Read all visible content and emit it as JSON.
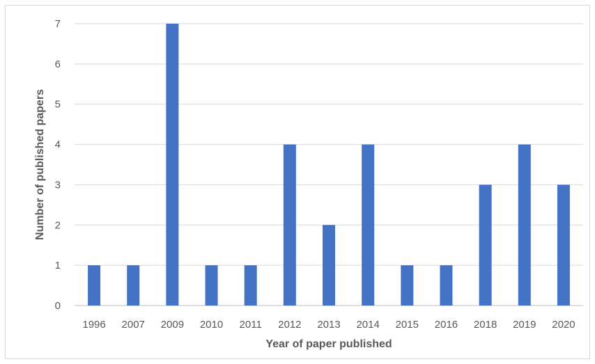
{
  "chart_data": {
    "type": "bar",
    "title": "",
    "xlabel": "Year of paper published",
    "ylabel": "Number of published papers",
    "categories": [
      "1996",
      "2007",
      "2009",
      "2010",
      "2011",
      "2012",
      "2013",
      "2014",
      "2015",
      "2016",
      "2018",
      "2019",
      "2020"
    ],
    "values": [
      1,
      1,
      7,
      1,
      1,
      4,
      2,
      4,
      1,
      1,
      3,
      4,
      3
    ],
    "ylim": [
      0,
      7
    ],
    "yticks": [
      "0",
      "1",
      "2",
      "3",
      "4",
      "5",
      "6",
      "7"
    ],
    "grid": true,
    "legend": "none",
    "bar_color": "#4472c4"
  }
}
